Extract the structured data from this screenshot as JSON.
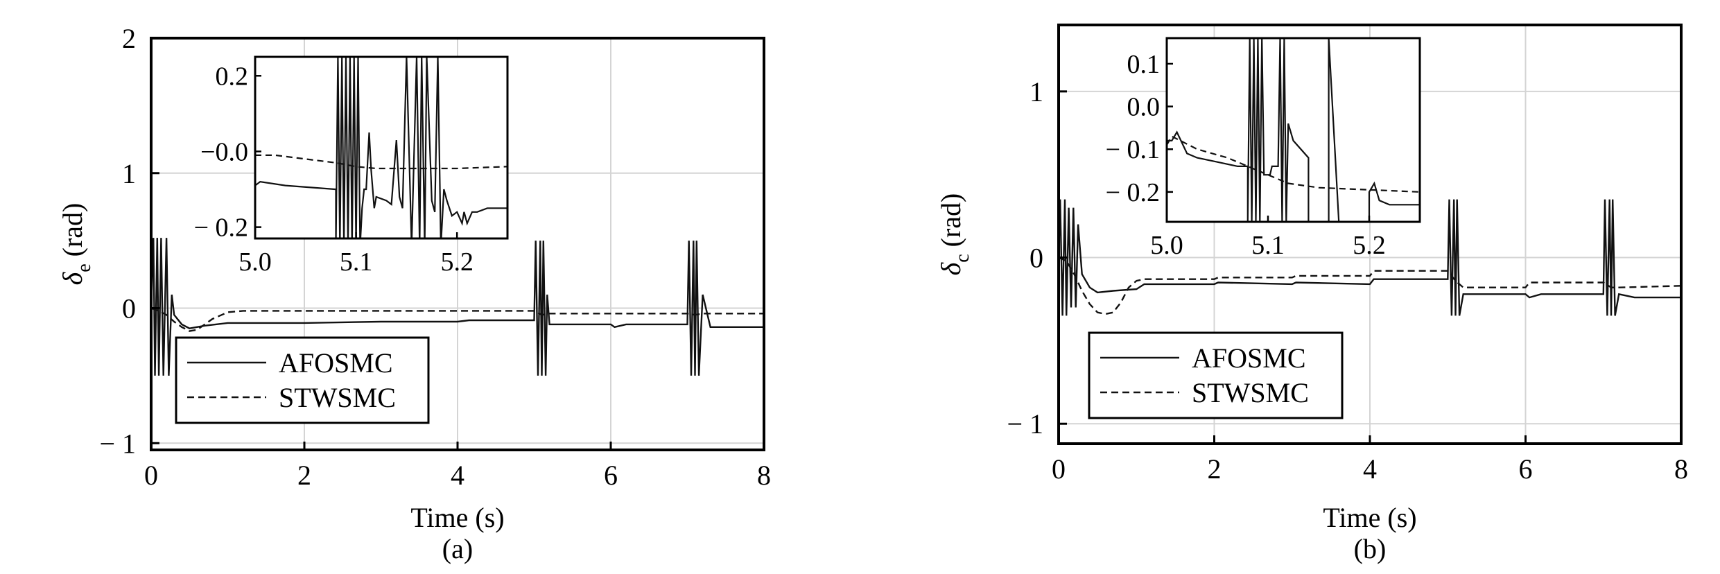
{
  "chart_data": [
    {
      "type": "line",
      "panel_label": "(a)",
      "xlabel": "Time (s)",
      "ylabel_symbol": "δ",
      "ylabel_sub": "e",
      "ylabel_unit": "(rad)",
      "xlim": [
        0,
        8
      ],
      "ylim": [
        -1.05,
        2
      ],
      "xticks": [
        {
          "v": 0,
          "t": "0"
        },
        {
          "v": 2,
          "t": "2"
        },
        {
          "v": 4,
          "t": "4"
        },
        {
          "v": 6,
          "t": "6"
        },
        {
          "v": 8,
          "t": "8"
        }
      ],
      "yticks": [
        {
          "v": -1,
          "t": "− 1"
        },
        {
          "v": 0,
          "t": "0"
        },
        {
          "v": 1,
          "t": "1"
        },
        {
          "v": 2,
          "t": "2"
        }
      ],
      "grid": true,
      "legend_position": "bottom-left",
      "series": [
        {
          "name": "AFOSMC",
          "style": "solid",
          "x": [
            0,
            0.03,
            0.05,
            0.08,
            0.1,
            0.13,
            0.16,
            0.2,
            0.23,
            0.27,
            0.3,
            0.4,
            0.5,
            0.7,
            1.0,
            2.0,
            3.0,
            4.0,
            4.15,
            5.0,
            5.02,
            5.05,
            5.08,
            5.1,
            5.12,
            5.15,
            5.17,
            5.2,
            5.3,
            6.0,
            6.05,
            6.2,
            7.0,
            7.02,
            7.05,
            7.08,
            7.1,
            7.12,
            7.15,
            7.2,
            7.3,
            8.0
          ],
          "y": [
            0,
            0.52,
            -0.5,
            0.52,
            -0.5,
            0.52,
            -0.5,
            0.52,
            -0.5,
            0.1,
            -0.05,
            -0.12,
            -0.15,
            -0.13,
            -0.11,
            -0.11,
            -0.1,
            -0.1,
            -0.09,
            -0.09,
            0.5,
            -0.5,
            0.5,
            -0.5,
            0.5,
            -0.5,
            0.1,
            -0.12,
            -0.12,
            -0.12,
            -0.14,
            -0.12,
            -0.12,
            0.5,
            -0.5,
            0.5,
            -0.5,
            0.5,
            -0.5,
            0.1,
            -0.14,
            -0.14
          ]
        },
        {
          "name": "STWSMC",
          "style": "dashed",
          "x": [
            0,
            0.1,
            0.2,
            0.3,
            0.4,
            0.5,
            0.6,
            0.8,
            1.0,
            1.2,
            2.0,
            4.0,
            5.0,
            5.1,
            5.2,
            5.3,
            6.0,
            7.0,
            7.1,
            7.2,
            8.0
          ],
          "y": [
            0,
            -0.02,
            -0.05,
            -0.1,
            -0.14,
            -0.17,
            -0.16,
            -0.08,
            -0.03,
            -0.02,
            -0.02,
            -0.02,
            -0.02,
            -0.05,
            -0.04,
            -0.04,
            -0.04,
            -0.04,
            -0.05,
            -0.04,
            -0.04
          ]
        }
      ],
      "inset": {
        "xlim": [
          5.0,
          5.25
        ],
        "ylim": [
          -0.23,
          0.25
        ],
        "xticks": [
          {
            "v": 5.0,
            "t": "5.0"
          },
          {
            "v": 5.1,
            "t": "5.1"
          },
          {
            "v": 5.2,
            "t": "5.2"
          }
        ],
        "yticks": [
          {
            "v": 0.2,
            "t": "0.2"
          },
          {
            "v": -0.0,
            "t": "−0.0"
          },
          {
            "v": -0.2,
            "t": "− 0.2"
          }
        ],
        "series": [
          {
            "name": "AFOSMC",
            "style": "solid",
            "x": [
              5.0,
              5.005,
              5.03,
              5.079,
              5.08,
              5.08,
              5.082,
              5.084,
              5.086,
              5.088,
              5.09,
              5.092,
              5.094,
              5.096,
              5.098,
              5.1,
              5.102,
              5.104,
              5.106,
              5.108,
              5.11,
              5.113,
              5.115,
              5.118,
              5.12,
              5.13,
              5.135,
              5.14,
              5.143,
              5.146,
              5.15,
              5.155,
              5.16,
              5.163,
              5.165,
              5.168,
              5.17,
              5.175,
              5.178,
              5.181,
              5.184,
              5.187,
              5.19,
              5.195,
              5.2,
              5.205,
              5.207,
              5.21,
              5.215,
              5.22,
              5.23,
              5.25
            ],
            "y": [
              -0.09,
              -0.08,
              -0.09,
              -0.1,
              -0.1,
              -0.25,
              0.25,
              -0.25,
              0.25,
              -0.25,
              0.25,
              -0.25,
              0.25,
              -0.25,
              0.25,
              -0.25,
              0.25,
              -0.25,
              -0.15,
              -0.1,
              -0.1,
              0.05,
              -0.05,
              -0.15,
              -0.12,
              -0.13,
              -0.14,
              0.03,
              -0.12,
              -0.15,
              0.25,
              -0.25,
              0.25,
              -0.25,
              0.25,
              -0.25,
              0.25,
              -0.13,
              -0.16,
              0.25,
              -0.25,
              -0.1,
              -0.13,
              -0.17,
              -0.16,
              -0.19,
              -0.16,
              -0.19,
              -0.16,
              -0.16,
              -0.15,
              -0.15
            ]
          },
          {
            "name": "STWSMC",
            "style": "dashed",
            "x": [
              5.0,
              5.02,
              5.05,
              5.08,
              5.1,
              5.12,
              5.15,
              5.2,
              5.25
            ],
            "y": [
              -0.01,
              -0.01,
              -0.02,
              -0.03,
              -0.04,
              -0.045,
              -0.045,
              -0.045,
              -0.04
            ]
          }
        ]
      }
    },
    {
      "type": "line",
      "panel_label": "(b)",
      "xlabel": "Time (s)",
      "ylabel_symbol": "δ",
      "ylabel_sub": "c",
      "ylabel_unit": "(rad)",
      "xlim": [
        0,
        8
      ],
      "ylim": [
        -1.12,
        1.4
      ],
      "xticks": [
        {
          "v": 0,
          "t": "0"
        },
        {
          "v": 2,
          "t": "2"
        },
        {
          "v": 4,
          "t": "4"
        },
        {
          "v": 6,
          "t": "6"
        },
        {
          "v": 8,
          "t": "8"
        }
      ],
      "yticks": [
        {
          "v": -1,
          "t": "− 1"
        },
        {
          "v": 0,
          "t": "0"
        },
        {
          "v": 1,
          "t": "1"
        }
      ],
      "grid": true,
      "legend_position": "bottom-left",
      "series": [
        {
          "name": "AFOSMC",
          "style": "solid",
          "x": [
            0,
            0.02,
            0.05,
            0.08,
            0.1,
            0.13,
            0.16,
            0.19,
            0.22,
            0.25,
            0.3,
            0.4,
            0.5,
            0.7,
            1.0,
            1.1,
            2.0,
            2.05,
            3.0,
            3.05,
            4.0,
            4.05,
            5.0,
            5.02,
            5.05,
            5.08,
            5.1,
            5.12,
            5.15,
            5.2,
            6.0,
            6.05,
            6.2,
            7.0,
            7.02,
            7.05,
            7.08,
            7.1,
            7.12,
            7.15,
            7.2,
            7.4,
            8.0
          ],
          "y": [
            0,
            0.35,
            -0.35,
            0.35,
            -0.35,
            0.3,
            -0.3,
            0.3,
            -0.3,
            0.2,
            -0.1,
            -0.18,
            -0.21,
            -0.2,
            -0.19,
            -0.16,
            -0.16,
            -0.15,
            -0.16,
            -0.15,
            -0.16,
            -0.13,
            -0.13,
            0.35,
            -0.35,
            0.35,
            -0.35,
            0.35,
            -0.35,
            -0.22,
            -0.22,
            -0.24,
            -0.22,
            -0.22,
            0.35,
            -0.35,
            0.35,
            -0.35,
            0.35,
            -0.35,
            -0.22,
            -0.24,
            -0.24
          ]
        },
        {
          "name": "STWSMC",
          "style": "dashed",
          "x": [
            0,
            0.1,
            0.2,
            0.3,
            0.4,
            0.5,
            0.6,
            0.7,
            0.8,
            0.9,
            1.0,
            1.1,
            1.2,
            2.0,
            2.05,
            3.0,
            3.05,
            4.0,
            4.05,
            5.0,
            5.1,
            5.2,
            6.0,
            6.05,
            6.2,
            7.0,
            7.1,
            7.2,
            8.0
          ],
          "y": [
            0,
            -0.02,
            -0.1,
            -0.2,
            -0.28,
            -0.33,
            -0.34,
            -0.33,
            -0.27,
            -0.18,
            -0.14,
            -0.13,
            -0.13,
            -0.13,
            -0.12,
            -0.12,
            -0.11,
            -0.11,
            -0.08,
            -0.08,
            -0.14,
            -0.18,
            -0.18,
            -0.15,
            -0.15,
            -0.15,
            -0.18,
            -0.18,
            -0.17
          ]
        }
      ],
      "inset": {
        "xlim": [
          5.0,
          5.25
        ],
        "ylim": [
          -0.27,
          0.16
        ],
        "xticks": [
          {
            "v": 5.0,
            "t": "5.0"
          },
          {
            "v": 5.1,
            "t": "5.1"
          },
          {
            "v": 5.2,
            "t": "5.2"
          }
        ],
        "yticks": [
          {
            "v": 0.1,
            "t": "0.1"
          },
          {
            "v": 0.0,
            "t": "0.0"
          },
          {
            "v": -0.1,
            "t": "− 0.1"
          },
          {
            "v": -0.2,
            "t": "− 0.2"
          }
        ],
        "series": [
          {
            "name": "AFOSMC",
            "style": "solid",
            "x": [
              5.0,
              5.005,
              5.01,
              5.02,
              5.03,
              5.05,
              5.07,
              5.079,
              5.08,
              5.08,
              5.082,
              5.084,
              5.086,
              5.088,
              5.09,
              5.092,
              5.094,
              5.096,
              5.1,
              5.102,
              5.104,
              5.106,
              5.11,
              5.112,
              5.114,
              5.116,
              5.118,
              5.12,
              5.125,
              5.14,
              5.14,
              5.16,
              5.16,
              5.17,
              5.17,
              5.2,
              5.2,
              5.205,
              5.21,
              5.22,
              5.25
            ],
            "y": [
              -0.08,
              -0.08,
              -0.06,
              -0.11,
              -0.12,
              -0.13,
              -0.14,
              -0.14,
              -0.14,
              -0.27,
              0.16,
              -0.27,
              0.16,
              -0.27,
              0.16,
              -0.27,
              0.16,
              -0.16,
              -0.16,
              -0.16,
              -0.14,
              -0.14,
              -0.14,
              0.16,
              -0.27,
              0.16,
              -0.27,
              -0.04,
              -0.08,
              -0.12,
              -0.27,
              -0.27,
              0.16,
              -0.27,
              -0.27,
              -0.27,
              -0.2,
              -0.18,
              -0.22,
              -0.23,
              -0.23
            ]
          },
          {
            "name": "STWSMC",
            "style": "dashed",
            "x": [
              5.0,
              5.005,
              5.03,
              5.06,
              5.08,
              5.1,
              5.12,
              5.15,
              5.2,
              5.25
            ],
            "y": [
              -0.09,
              -0.07,
              -0.1,
              -0.12,
              -0.14,
              -0.16,
              -0.18,
              -0.19,
              -0.195,
              -0.2
            ]
          }
        ]
      }
    }
  ]
}
